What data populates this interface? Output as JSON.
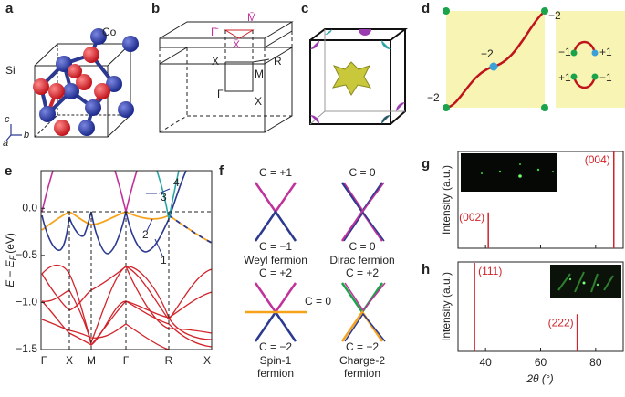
{
  "panels": {
    "a": {
      "letter": "a",
      "atoms": [
        "Co",
        "Si"
      ],
      "axes": [
        "c",
        "a",
        "b"
      ]
    },
    "b": {
      "letter": "b",
      "labels": [
        "Γ̄",
        "M̄",
        "X̄",
        "X",
        "R",
        "M",
        "Γ",
        "X"
      ]
    },
    "c": {
      "letter": "c"
    },
    "d": {
      "letter": "d",
      "labels": [
        "−2",
        "+2",
        "−2",
        "−1",
        "+1",
        "+1",
        "−1"
      ]
    },
    "e": {
      "letter": "e",
      "ylabel": {
        "main": "E − E",
        "sub": "F",
        "unit": "(eV)"
      },
      "ylim": [
        -1.5,
        0.4
      ],
      "yticks": [
        {
          "value": 0,
          "label": "0.0"
        },
        {
          "value": -0.5,
          "label": "−0.5"
        },
        {
          "value": -1,
          "label": "−1.0"
        },
        {
          "value": -1.5,
          "label": "−1.5"
        }
      ],
      "kpoints": [
        "Γ",
        "X",
        "M",
        "Γ",
        "R",
        "X"
      ],
      "annotations": [
        "4",
        "3",
        "2",
        "1"
      ]
    },
    "f": {
      "letter": "f",
      "cones": [
        {
          "top": "C = +1",
          "bottom": "C = −1",
          "name": [
            "Weyl fermion"
          ]
        },
        {
          "top": "C = 0",
          "bottom": "C = 0",
          "name": [
            "Dirac fermion"
          ]
        },
        {
          "top": "C = +2",
          "middle": "C = 0",
          "bottom": "C = −2",
          "name": [
            "Spin-1",
            "fermion"
          ]
        },
        {
          "top": "C = +2",
          "bottom": "C = −2",
          "name": [
            "Charge-2",
            "fermion"
          ]
        }
      ]
    }
  },
  "xrd": {
    "xlim": [
      30,
      90
    ],
    "xticks": [
      40,
      60,
      80
    ],
    "xlabel": "2θ (°)",
    "ylabel": "Intensity (a.u.)",
    "g": {
      "letter": "g",
      "peaks": [
        {
          "label": "(002)",
          "x": 41,
          "height": 0.37
        },
        {
          "label": "(004)",
          "x": 86.6,
          "height": 1
        }
      ]
    },
    "h": {
      "letter": "h",
      "peaks": [
        {
          "label": "(111)",
          "x": 36,
          "height": 1
        },
        {
          "label": "(222)",
          "x": 73.3,
          "height": 0.42
        }
      ]
    }
  }
}
